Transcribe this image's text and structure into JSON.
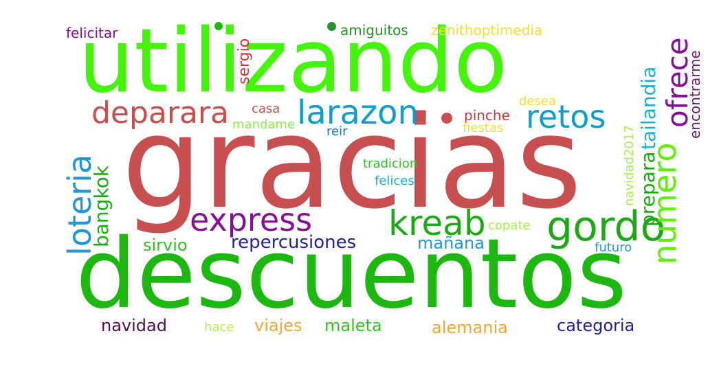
{
  "words": [
    {
      "text": "gracias",
      "color": "#c84f50"
    },
    {
      "text": "descuentos",
      "color": "#1db80f"
    },
    {
      "text": "utilizando",
      "color": "#44f40a"
    },
    {
      "text": "deparara",
      "color": "#c84f50"
    },
    {
      "text": "larazon",
      "color": "#0f9ecb"
    },
    {
      "text": "retos",
      "color": "#0f9ecb"
    },
    {
      "text": "ofrece",
      "color": "#860d96"
    },
    {
      "text": "express",
      "color": "#860d96"
    },
    {
      "text": "kreab",
      "color": "#1aaa13"
    },
    {
      "text": "gordo",
      "color": "#1aaa13"
    },
    {
      "text": "numero",
      "color": "#62ef0c"
    },
    {
      "text": "loteria",
      "color": "#2196d8"
    },
    {
      "text": "tailandia",
      "color": "#1baed0"
    },
    {
      "text": "prepara",
      "color": "#1aaa13"
    },
    {
      "text": "bangkok",
      "color": "#1aaa13"
    },
    {
      "text": "repercusiones",
      "color": "#1f1f9a"
    },
    {
      "text": "sirvio",
      "color": "#2dc420"
    },
    {
      "text": "mañana",
      "color": "#2196d8"
    },
    {
      "text": "navidad",
      "color": "#4e0d55"
    },
    {
      "text": "viajes",
      "color": "#f2a532"
    },
    {
      "text": "maleta",
      "color": "#2dc420"
    },
    {
      "text": "alemania",
      "color": "#f2a532"
    },
    {
      "text": "categoria",
      "color": "#1f1f9a"
    },
    {
      "text": "hace",
      "color": "#b8ef4f"
    },
    {
      "text": "felicitar",
      "color": "#860d96"
    },
    {
      "text": "sergio",
      "color": "#d83030"
    },
    {
      "text": "amiguitos",
      "color": "#2b8f2b"
    },
    {
      "text": "zenithoptimedia",
      "color": "#f2dd3a"
    },
    {
      "text": "encontrarme",
      "color": "#6a1a6a"
    },
    {
      "text": "casa",
      "color": "#c84f50"
    },
    {
      "text": "pinche",
      "color": "#c83a3a"
    },
    {
      "text": "desea",
      "color": "#f2dd3a"
    },
    {
      "text": "fiestas",
      "color": "#f2dd3a"
    },
    {
      "text": "mandame",
      "color": "#88ef4f"
    },
    {
      "text": "reir",
      "color": "#0f7ecb"
    },
    {
      "text": "navidad2017",
      "color": "#a8ef4f"
    },
    {
      "text": "tradicion",
      "color": "#2dc420"
    },
    {
      "text": "felices",
      "color": "#1baed0"
    },
    {
      "text": "copate",
      "color": "#a8ef4f"
    },
    {
      "text": "futuro",
      "color": "#2196d8"
    }
  ],
  "dots": [
    {
      "color": "#1db80f"
    },
    {
      "color": "#2b8f2b"
    },
    {
      "color": "#c84f50"
    }
  ]
}
